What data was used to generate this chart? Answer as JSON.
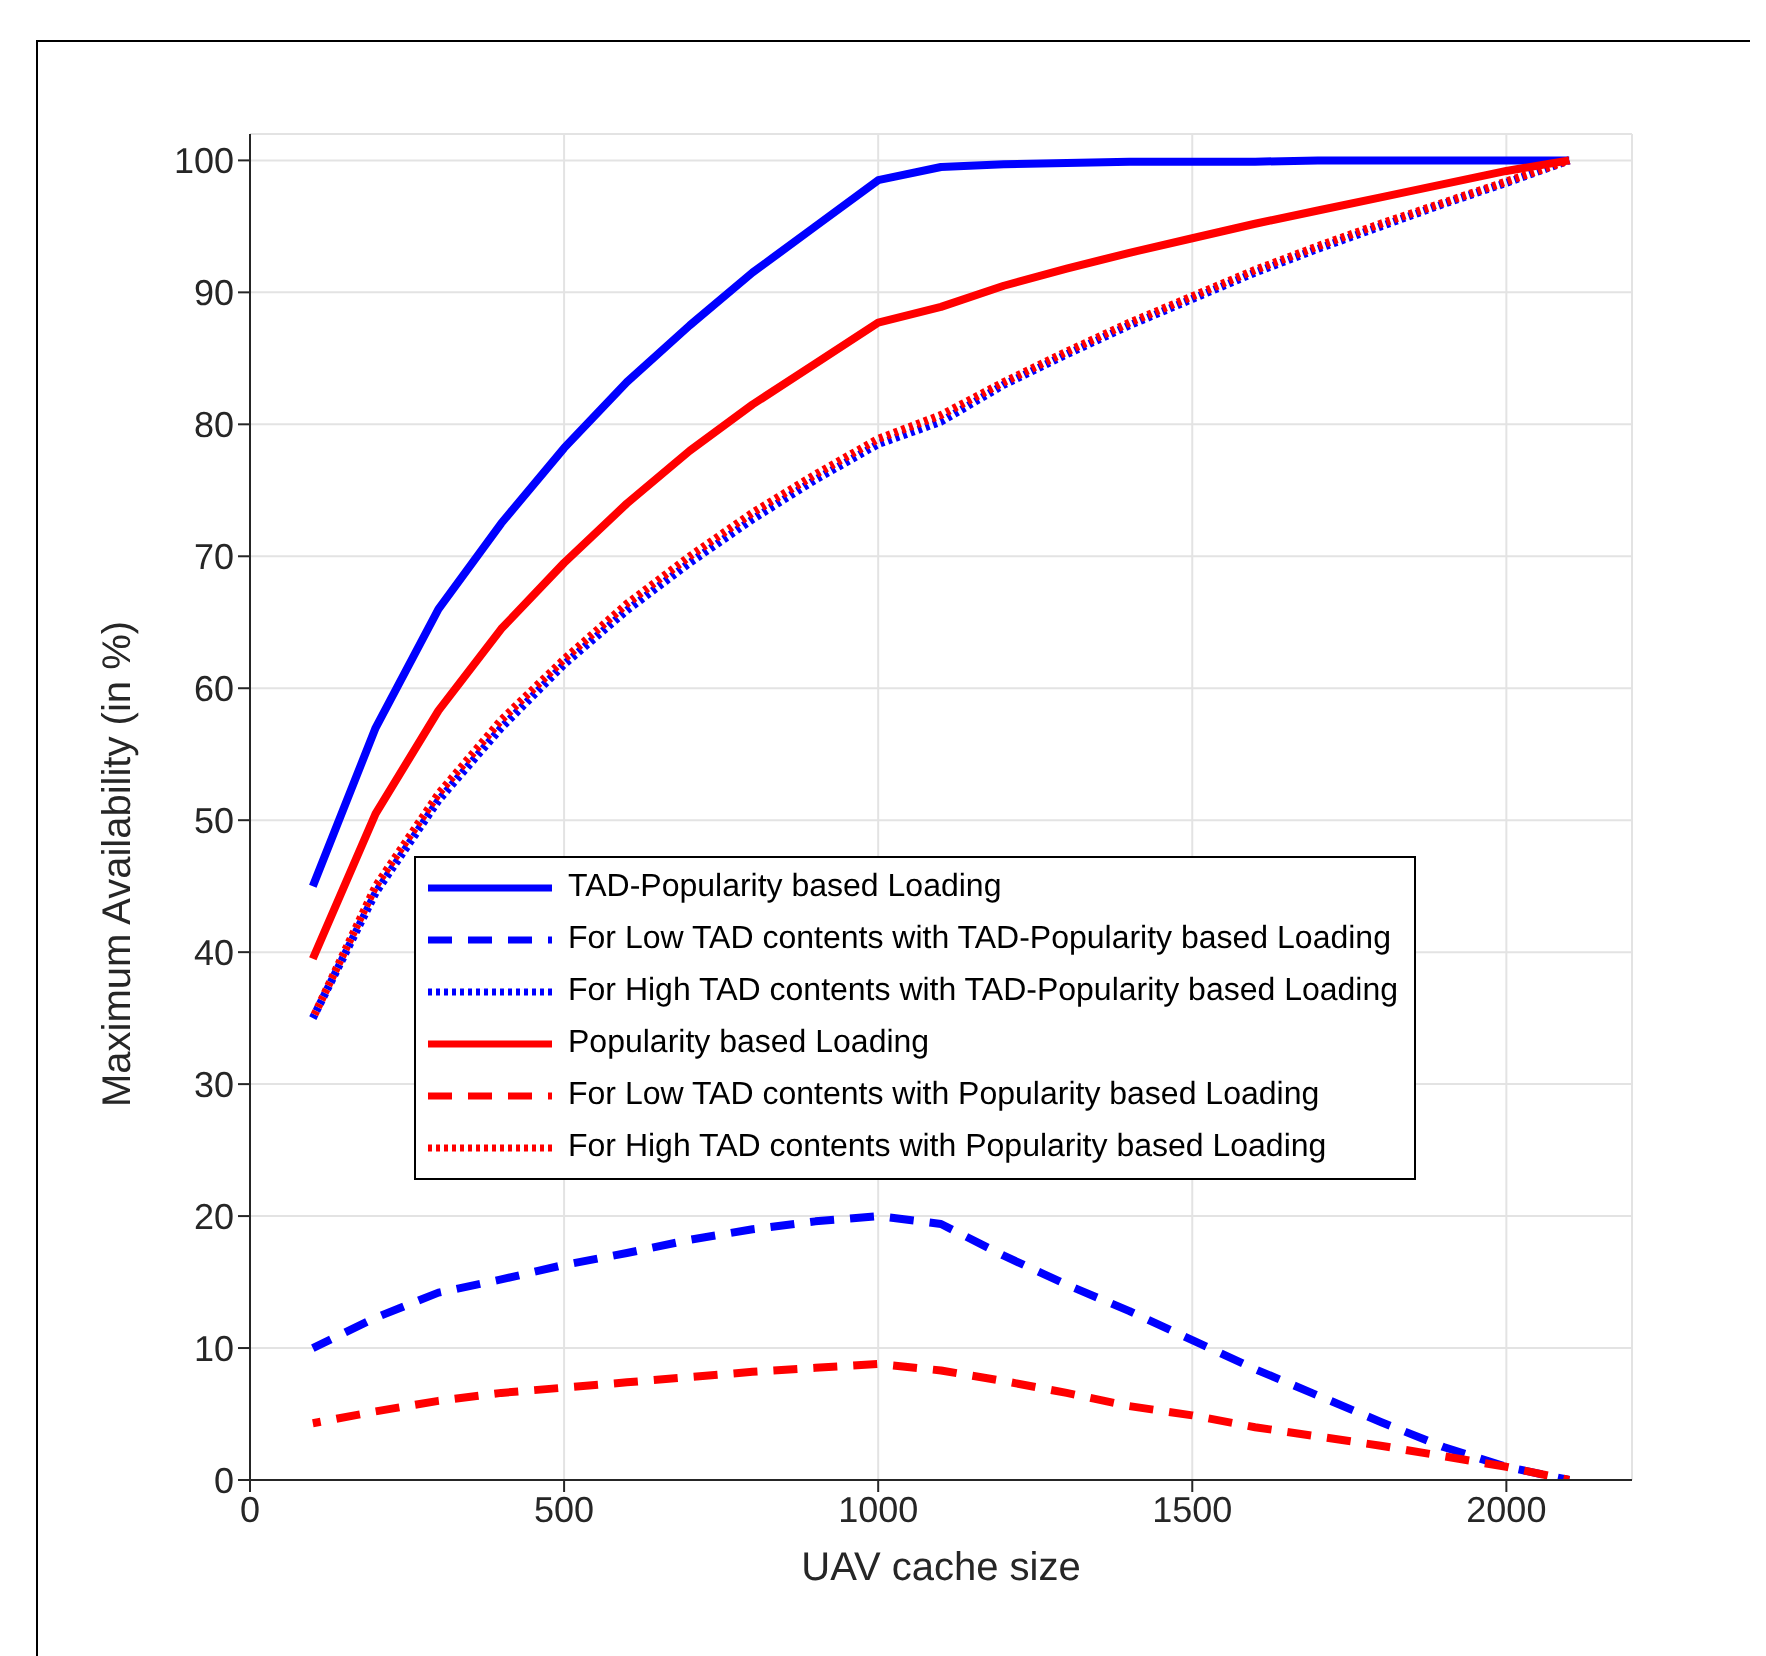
{
  "chart_data": {
    "type": "line",
    "xlabel": "UAV cache size",
    "ylabel": "Maximum Availability (in %)",
    "x": [
      100,
      200,
      300,
      400,
      500,
      600,
      700,
      800,
      900,
      1000,
      1100,
      1200,
      1300,
      1400,
      1500,
      1600,
      1700,
      1800,
      1900,
      2000,
      2100
    ],
    "xlim": [
      0,
      2200
    ],
    "xticks": [
      0,
      500,
      1000,
      1500,
      2000
    ],
    "ylim": [
      0,
      102
    ],
    "yticks": [
      0,
      10,
      20,
      30,
      40,
      50,
      60,
      70,
      80,
      90,
      100
    ],
    "grid": true,
    "legend": "center",
    "marker": "none",
    "series": [
      {
        "name": "TAD-Popularity based Loading",
        "color": "#0000ff",
        "line_style": "solid",
        "values": [
          45,
          57,
          66,
          72.5,
          78.2,
          83.2,
          87.5,
          91.5,
          95,
          98.5,
          99.5,
          99.7,
          99.8,
          99.9,
          99.9,
          99.9,
          100,
          100,
          100,
          100,
          100
        ]
      },
      {
        "name": "For Low TAD contents with TAD-Popularity based Loading",
        "color": "#0000ff",
        "line_style": "dashed",
        "values": [
          10,
          12.3,
          14.2,
          15.2,
          16.3,
          17.2,
          18.2,
          19,
          19.6,
          20,
          19.4,
          17,
          14.8,
          12.8,
          10.6,
          8.4,
          6.4,
          4.4,
          2.5,
          1,
          0
        ]
      },
      {
        "name": "For High TAD contents with TAD-Popularity based Loading",
        "color": "#0000ff",
        "line_style": "dotted",
        "values": [
          35,
          44.5,
          51.5,
          57,
          61.8,
          65.9,
          69.5,
          72.8,
          75.8,
          78.5,
          80.2,
          83,
          85.3,
          87.5,
          89.5,
          91.5,
          93.3,
          95,
          96.7,
          98.3,
          100
        ]
      },
      {
        "name": "Popularity based Loading",
        "color": "#ff0000",
        "line_style": "solid",
        "values": [
          39.5,
          50.5,
          58.3,
          64.5,
          69.5,
          74,
          78,
          81.5,
          84.6,
          87.7,
          88.9,
          90.5,
          91.8,
          93,
          94.1,
          95.2,
          96.2,
          97.2,
          98.2,
          99.2,
          100
        ]
      },
      {
        "name": "For Low TAD contents with Popularity based Loading",
        "color": "#ff0000",
        "line_style": "dashed",
        "values": [
          4.3,
          5.2,
          6,
          6.6,
          7,
          7.4,
          7.8,
          8.2,
          8.5,
          8.8,
          8.3,
          7.5,
          6.6,
          5.6,
          4.9,
          4,
          3.3,
          2.6,
          1.8,
          1,
          0
        ]
      },
      {
        "name": "For High TAD contents with Popularity based Loading",
        "color": "#ff0000",
        "line_style": "dotted",
        "values": [
          35,
          45,
          52,
          57.6,
          62.2,
          66.4,
          70,
          73.3,
          76.2,
          78.9,
          80.7,
          83.2,
          85.5,
          87.7,
          89.7,
          91.7,
          93.5,
          95.2,
          96.8,
          98.4,
          100
        ]
      }
    ]
  }
}
